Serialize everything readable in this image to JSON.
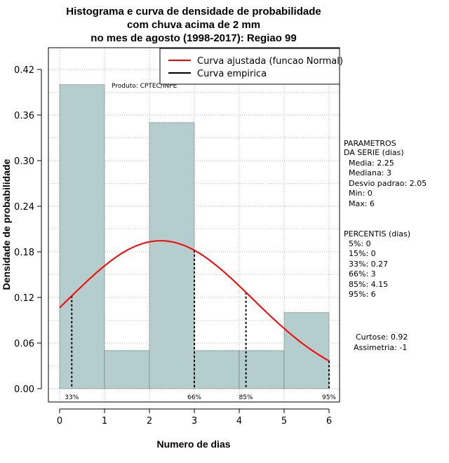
{
  "chart_data": {
    "type": "bar",
    "title": [
      "Histograma e curva de densidade de probabilidade",
      "com chuva acima de 2 mm",
      "no mes de agosto (1998-2017): Regiao 99"
    ],
    "xlabel": "Numero de dias",
    "ylabel": "Densidade de probabilidade",
    "xlim": [
      0,
      6
    ],
    "ylim": [
      0,
      0.42
    ],
    "x_ticks": [
      "0",
      "1",
      "2",
      "3",
      "4",
      "5",
      "6"
    ],
    "y_ticks": [
      "0.00",
      "0.06",
      "0.12",
      "0.18",
      "0.24",
      "0.30",
      "0.36",
      "0.42"
    ],
    "grid": true,
    "bins": [
      {
        "from": 0,
        "to": 1,
        "value": 0.4
      },
      {
        "from": 1,
        "to": 2,
        "value": 0.05
      },
      {
        "from": 2,
        "to": 3,
        "value": 0.35
      },
      {
        "from": 3,
        "to": 4,
        "value": 0.05
      },
      {
        "from": 4,
        "to": 5,
        "value": 0.05
      },
      {
        "from": 5,
        "to": 6,
        "value": 0.1
      }
    ],
    "fitted_curve": {
      "name": "Curva ajustada (funcao Normal)",
      "color": "#ff0000",
      "mean": 2.25,
      "sd": 2.05
    },
    "empirical_curve": {
      "name": "Curva empirica",
      "color": "#000000"
    },
    "legend_position": "top-right",
    "percentile_lines": [
      {
        "x": 0.27,
        "label": "33%"
      },
      {
        "x": 3,
        "label": "66%"
      },
      {
        "x": 4.15,
        "label": "85%"
      },
      {
        "x": 6,
        "label": "95%"
      }
    ],
    "bar_color": "#b4cdcd",
    "product_label": "Produto: CPTEC/INPE"
  },
  "side_panel": {
    "parametros": [
      "PARAMETROS",
      "DA SERIE (dias)",
      "  Media: 2.25",
      "  Mediana: 3",
      "  Desvio padrao: 2.05",
      "  Min: 0",
      "  Max: 6"
    ],
    "percentis": [
      "PERCENTIS (dias)",
      "  5%: 0",
      "  15%: 0",
      "  33%: 0.27",
      "  66%: 3",
      "  85%: 4.15",
      "  95%: 6"
    ],
    "curtose": "Curtose: 0.92",
    "assimetria": "Assimetria: -1"
  }
}
